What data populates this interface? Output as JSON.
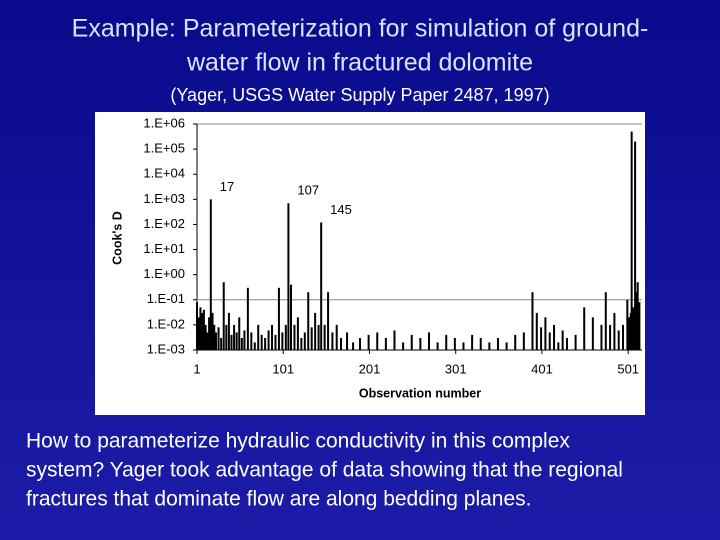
{
  "slide": {
    "title": [
      "Example: Parameterization for simulation of ground-",
      "water flow in fractured dolomite"
    ],
    "subtitle": "(Yager, USGS Water Supply Paper 2487, 1997)",
    "body": [
      "How to parameterize hydraulic conductivity in this complex",
      "system? Yager took advantage of data showing that the regional",
      "fractures that dominate flow are along bedding planes."
    ]
  },
  "chart_data": {
    "type": "bar",
    "log_y": true,
    "color": "#000000",
    "y_label": "Cook's D",
    "x_label": "Observation number",
    "xlim": [
      1,
      517
    ],
    "xticks": [
      1,
      101,
      201,
      301,
      401,
      501
    ],
    "ylim": [
      0.001,
      1000000
    ],
    "yticks": [
      {
        "value": 0.001,
        "label": "1.E-03"
      },
      {
        "value": 0.01,
        "label": "1.E-02"
      },
      {
        "value": 0.1,
        "label": "1.E-01"
      },
      {
        "value": 1,
        "label": "1.E+00"
      },
      {
        "value": 10,
        "label": "1.E+01"
      },
      {
        "value": 100,
        "label": "1.E+02"
      },
      {
        "value": 1000,
        "label": "1.E+03"
      },
      {
        "value": 10000,
        "label": "1.E+04"
      },
      {
        "value": 100000,
        "label": "1.E+05"
      },
      {
        "value": 1000000,
        "label": "1.E+06"
      }
    ],
    "hline": 0.1,
    "x": [
      1,
      3,
      5,
      7,
      9,
      11,
      13,
      15,
      17,
      19,
      21,
      23,
      26,
      29,
      32,
      35,
      38,
      41,
      44,
      47,
      50,
      53,
      56,
      60,
      64,
      68,
      72,
      76,
      80,
      84,
      88,
      92,
      96,
      100,
      104,
      107,
      110,
      114,
      118,
      122,
      126,
      130,
      134,
      138,
      142,
      145,
      149,
      153,
      158,
      163,
      168,
      175,
      182,
      190,
      200,
      210,
      220,
      230,
      240,
      250,
      260,
      270,
      280,
      290,
      300,
      310,
      320,
      330,
      340,
      350,
      360,
      370,
      380,
      390,
      395,
      400,
      405,
      410,
      415,
      420,
      425,
      430,
      440,
      450,
      460,
      470,
      475,
      480,
      485,
      490,
      495,
      500,
      502,
      504,
      505,
      507,
      509,
      510,
      512,
      514
    ],
    "values": [
      0.08,
      0.02,
      0.05,
      0.03,
      0.04,
      0.01,
      0.005,
      0.02,
      1000,
      0.03,
      0.01,
      0.005,
      0.008,
      0.003,
      0.5,
      0.01,
      0.03,
      0.004,
      0.01,
      0.005,
      0.02,
      0.003,
      0.006,
      0.3,
      0.005,
      0.002,
      0.01,
      0.004,
      0.003,
      0.006,
      0.01,
      0.004,
      0.3,
      0.005,
      0.01,
      700,
      0.4,
      0.01,
      0.02,
      0.003,
      0.005,
      0.2,
      0.008,
      0.03,
      0.01,
      120,
      0.01,
      0.2,
      0.005,
      0.01,
      0.003,
      0.005,
      0.002,
      0.003,
      0.004,
      0.005,
      0.003,
      0.006,
      0.002,
      0.004,
      0.003,
      0.005,
      0.002,
      0.004,
      0.003,
      0.002,
      0.004,
      0.003,
      0.002,
      0.003,
      0.002,
      0.004,
      0.005,
      0.2,
      0.03,
      0.008,
      0.02,
      0.005,
      0.01,
      0.002,
      0.006,
      0.003,
      0.004,
      0.05,
      0.02,
      0.01,
      0.2,
      0.01,
      0.03,
      0.006,
      0.01,
      0.1,
      0.02,
      0.03,
      500000,
      0.05,
      200000,
      0.2,
      0.5,
      0.08
    ],
    "annotations": [
      {
        "text": "17",
        "x": 17
      },
      {
        "text": "107",
        "x": 107
      },
      {
        "text": "145",
        "x": 145
      }
    ]
  }
}
